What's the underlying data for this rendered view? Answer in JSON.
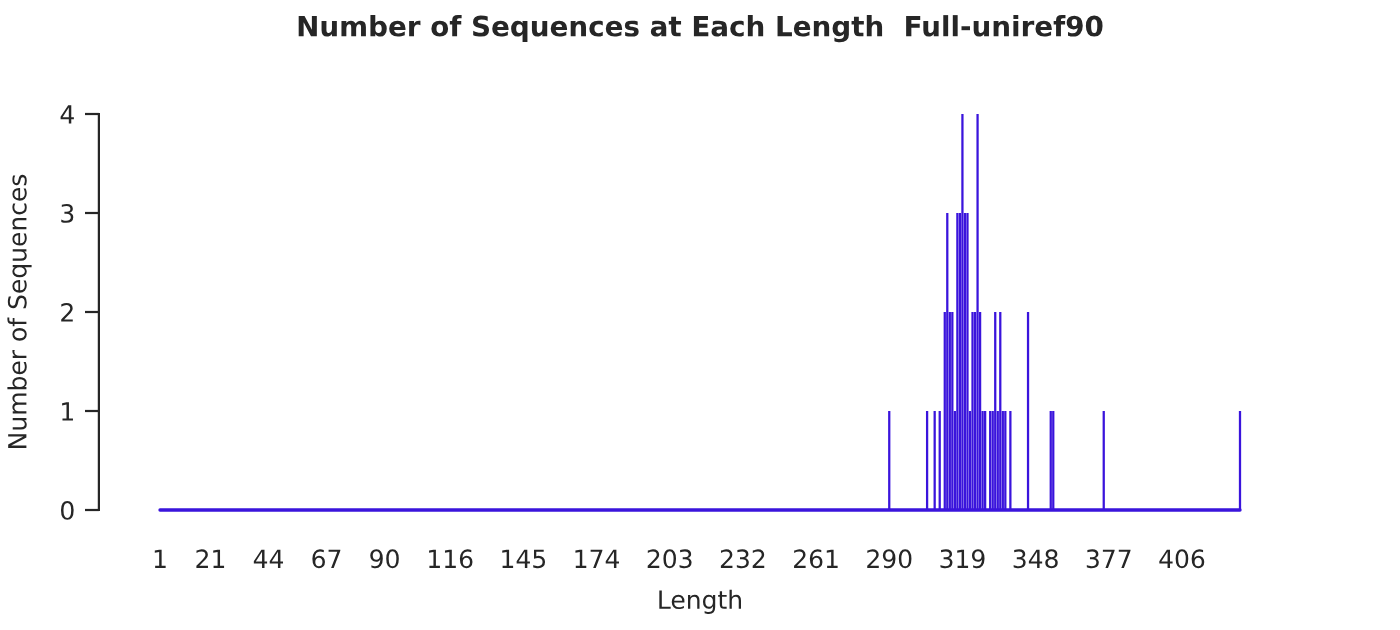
{
  "chart_data": {
    "type": "bar",
    "title": "Number of Sequences at Each Length  Full-uniref90",
    "xlabel": "Length",
    "ylabel": "Number of Sequences",
    "xlim": [
      1,
      429
    ],
    "xticks": [
      1,
      21,
      44,
      67,
      90,
      116,
      145,
      174,
      203,
      232,
      261,
      290,
      319,
      348,
      377,
      406
    ],
    "ylim": [
      0,
      4
    ],
    "yticks": [
      0,
      1,
      2,
      3,
      4
    ],
    "grid": false,
    "legend": false,
    "series": [
      {
        "color": "#3a14dc",
        "x": [
          290,
          305,
          308,
          310,
          312,
          313,
          314,
          315,
          316,
          317,
          318,
          319,
          320,
          321,
          322,
          323,
          324,
          325,
          326,
          327,
          328,
          330,
          331,
          332,
          333,
          334,
          335,
          336,
          338,
          345,
          354,
          355,
          375,
          429
        ],
        "values": [
          1,
          1,
          1,
          1,
          2,
          3,
          2,
          2,
          1,
          3,
          3,
          4,
          3,
          3,
          1,
          2,
          2,
          4,
          2,
          1,
          1,
          1,
          1,
          2,
          1,
          2,
          1,
          1,
          1,
          2,
          1,
          1,
          1,
          1
        ]
      },
      {
        "type": "line",
        "color": "#3a14dc",
        "x": [
          1,
          429
        ],
        "values": [
          0,
          0
        ]
      }
    ]
  }
}
